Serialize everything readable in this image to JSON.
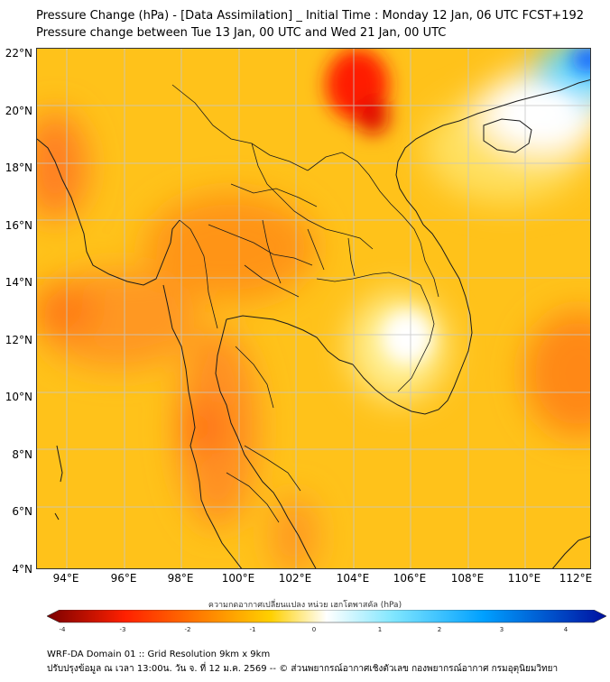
{
  "header": {
    "title_line1": "Pressure Change (hPa) - [Data Assimilation] _ Initial Time : Monday 12 Jan, 06 UTC FCST+192",
    "title_line2": "Pressure change between Tue 13 Jan, 00 UTC and Wed 21 Jan, 00 UTC"
  },
  "map": {
    "lat_labels": [
      "22°N",
      "20°N",
      "18°N",
      "16°N",
      "14°N",
      "12°N",
      "10°N",
      "8°N",
      "6°N",
      "4°N"
    ],
    "lon_labels": [
      "94°E",
      "96°E",
      "98°E",
      "100°E",
      "102°E",
      "104°E",
      "106°E",
      "108°E",
      "110°E",
      "112°E"
    ],
    "gridline_color": "#c8c8c8",
    "coast_color": "#1a1a1a"
  },
  "colorbar": {
    "title": "ความกดอากาศเปลี่ยนแปลง หน่วย เฮกโตพาสคัล (hPa)",
    "ticks": [
      "-4",
      "-3",
      "-2",
      "-1",
      "0",
      "1",
      "2",
      "3",
      "4"
    ],
    "min": -4,
    "max": 4,
    "colors": [
      "#7a0000",
      "#ff2000",
      "#ff8000",
      "#ffd000",
      "#ffffff",
      "#7fe6ff",
      "#00a0ff",
      "#0010a0"
    ]
  },
  "footer": {
    "line1": "WRF-DA Domain 01 :: Grid Resolution 9km x 9km",
    "line2": "ปรับปรุงข้อมูล ณ เวลา 13:00น. วัน จ. ที่ 12 ม.ค. 2569 -- © ส่วนพยากรณ์อากาศเชิงตัวเลข กองพยากรณ์อากาศ กรมอุตุนิยมวิทยา"
  }
}
